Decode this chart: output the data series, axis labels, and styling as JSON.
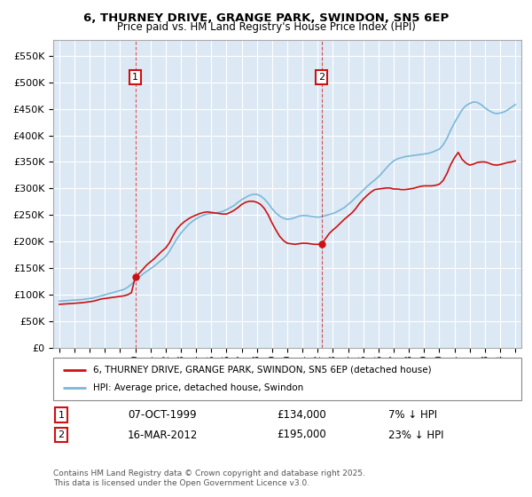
{
  "title_line1": "6, THURNEY DRIVE, GRANGE PARK, SWINDON, SN5 6EP",
  "title_line2": "Price paid vs. HM Land Registry's House Price Index (HPI)",
  "ylabel_ticks": [
    "£0",
    "£50K",
    "£100K",
    "£150K",
    "£200K",
    "£250K",
    "£300K",
    "£350K",
    "£400K",
    "£450K",
    "£500K",
    "£550K"
  ],
  "ytick_values": [
    0,
    50000,
    100000,
    150000,
    200000,
    250000,
    300000,
    350000,
    400000,
    450000,
    500000,
    550000
  ],
  "ylim": [
    0,
    580000
  ],
  "hpi_color": "#7ab8d9",
  "price_color": "#cc1111",
  "background_color": "#dce9f5",
  "sale1_date": "07-OCT-1999",
  "sale1_price": 134000,
  "sale1_year": 2000.0,
  "sale1_label": "7% ↓ HPI",
  "sale2_date": "16-MAR-2012",
  "sale2_price": 195000,
  "sale2_year": 2012.25,
  "sale2_label": "23% ↓ HPI",
  "legend_line1": "6, THURNEY DRIVE, GRANGE PARK, SWINDON, SN5 6EP (detached house)",
  "legend_line2": "HPI: Average price, detached house, Swindon",
  "footnote": "Contains HM Land Registry data © Crown copyright and database right 2025.\nThis data is licensed under the Open Government Licence v3.0.",
  "xstart_year": 1995,
  "xend_year": 2025,
  "hpi_years": [
    1995.0,
    1995.25,
    1995.5,
    1995.75,
    1996.0,
    1996.25,
    1996.5,
    1996.75,
    1997.0,
    1997.25,
    1997.5,
    1997.75,
    1998.0,
    1998.25,
    1998.5,
    1998.75,
    1999.0,
    1999.25,
    1999.5,
    1999.75,
    2000.0,
    2000.25,
    2000.5,
    2000.75,
    2001.0,
    2001.25,
    2001.5,
    2001.75,
    2002.0,
    2002.25,
    2002.5,
    2002.75,
    2003.0,
    2003.25,
    2003.5,
    2003.75,
    2004.0,
    2004.25,
    2004.5,
    2004.75,
    2005.0,
    2005.25,
    2005.5,
    2005.75,
    2006.0,
    2006.25,
    2006.5,
    2006.75,
    2007.0,
    2007.25,
    2007.5,
    2007.75,
    2008.0,
    2008.25,
    2008.5,
    2008.75,
    2009.0,
    2009.25,
    2009.5,
    2009.75,
    2010.0,
    2010.25,
    2010.5,
    2010.75,
    2011.0,
    2011.25,
    2011.5,
    2011.75,
    2012.0,
    2012.25,
    2012.5,
    2012.75,
    2013.0,
    2013.25,
    2013.5,
    2013.75,
    2014.0,
    2014.25,
    2014.5,
    2014.75,
    2015.0,
    2015.25,
    2015.5,
    2015.75,
    2016.0,
    2016.25,
    2016.5,
    2016.75,
    2017.0,
    2017.25,
    2017.5,
    2017.75,
    2018.0,
    2018.25,
    2018.5,
    2018.75,
    2019.0,
    2019.25,
    2019.5,
    2019.75,
    2020.0,
    2020.25,
    2020.5,
    2020.75,
    2021.0,
    2021.25,
    2021.5,
    2021.75,
    2022.0,
    2022.25,
    2022.5,
    2022.75,
    2023.0,
    2023.25,
    2023.5,
    2023.75,
    2024.0,
    2024.25,
    2024.5,
    2024.75,
    2025.0
  ],
  "hpi_values": [
    88000,
    88500,
    89000,
    89500,
    90000,
    90500,
    91000,
    92000,
    93000,
    94000,
    96000,
    98000,
    100000,
    102000,
    104000,
    106000,
    108000,
    110000,
    114000,
    120000,
    127000,
    133000,
    139000,
    144000,
    149000,
    154000,
    160000,
    166000,
    172000,
    182000,
    194000,
    206000,
    216000,
    224000,
    232000,
    238000,
    243000,
    247000,
    250000,
    252000,
    253000,
    254000,
    255000,
    257000,
    260000,
    264000,
    268000,
    274000,
    279000,
    283000,
    287000,
    289000,
    289000,
    286000,
    280000,
    272000,
    262000,
    254000,
    248000,
    244000,
    242000,
    243000,
    245000,
    248000,
    249000,
    249000,
    248000,
    247000,
    246000,
    247000,
    249000,
    251000,
    253000,
    256000,
    260000,
    264000,
    270000,
    276000,
    283000,
    290000,
    297000,
    304000,
    310000,
    316000,
    322000,
    330000,
    338000,
    346000,
    352000,
    356000,
    358000,
    360000,
    361000,
    362000,
    363000,
    364000,
    365000,
    366000,
    368000,
    371000,
    374000,
    382000,
    394000,
    410000,
    424000,
    436000,
    448000,
    456000,
    460000,
    463000,
    462000,
    458000,
    452000,
    447000,
    443000,
    441000,
    442000,
    444000,
    448000,
    453000,
    458000
  ],
  "price_values": [
    82000,
    82500,
    83000,
    83500,
    84000,
    84500,
    85000,
    86000,
    87000,
    88000,
    90000,
    92000,
    93000,
    94000,
    95000,
    96000,
    97000,
    98000,
    100000,
    104000,
    134000,
    140000,
    148000,
    156000,
    162000,
    168000,
    175000,
    182000,
    188000,
    198000,
    212000,
    224000,
    232000,
    238000,
    243000,
    247000,
    250000,
    253000,
    255000,
    256000,
    255000,
    254000,
    253000,
    252000,
    252000,
    255000,
    259000,
    264000,
    270000,
    274000,
    276000,
    276000,
    274000,
    270000,
    262000,
    250000,
    235000,
    222000,
    210000,
    202000,
    197000,
    196000,
    195000,
    196000,
    197000,
    197000,
    196000,
    195000,
    195000,
    195000,
    205000,
    215000,
    222000,
    228000,
    235000,
    242000,
    248000,
    254000,
    262000,
    272000,
    280000,
    287000,
    293000,
    298000,
    299000,
    300000,
    301000,
    301000,
    299000,
    299000,
    298000,
    298000,
    299000,
    300000,
    302000,
    304000,
    305000,
    305000,
    305000,
    306000,
    308000,
    315000,
    328000,
    345000,
    358000,
    368000,
    355000,
    348000,
    344000,
    346000,
    349000,
    350000,
    350000,
    348000,
    345000,
    344000,
    345000,
    347000,
    349000,
    350000,
    352000
  ]
}
